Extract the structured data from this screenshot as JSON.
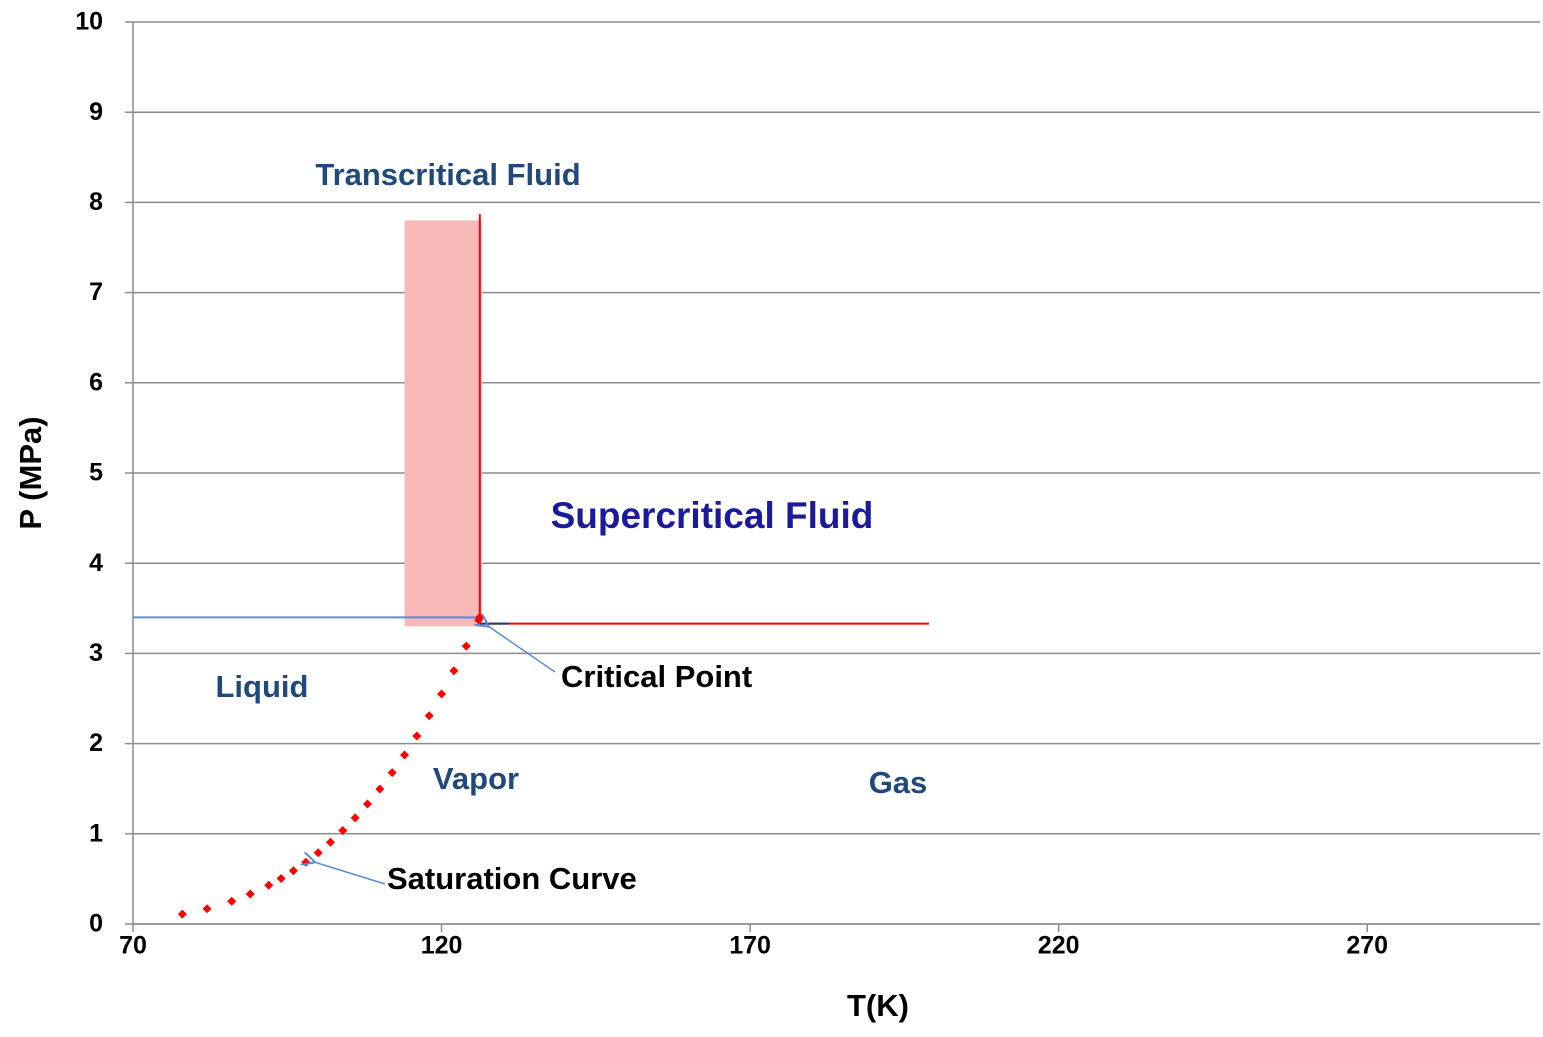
{
  "chart_data": {
    "type": "scatter",
    "xlabel": "T(K)",
    "ylabel": "P (MPa)",
    "xlim": [
      70,
      298
    ],
    "xticks": [
      70,
      120,
      170,
      220,
      270
    ],
    "ylim": [
      0,
      10
    ],
    "yticks": [
      0,
      1,
      2,
      3,
      4,
      5,
      6,
      7,
      8,
      9,
      10
    ],
    "grid": true,
    "series": [
      {
        "name": "Saturation Curve",
        "color": "#ff0000",
        "x": [
          78,
          82,
          86,
          89,
          92,
          94,
          96,
          98,
          100,
          102,
          104,
          106,
          108,
          110,
          112,
          114,
          116,
          118,
          120,
          122,
          124,
          126,
          126.2
        ],
        "values": [
          0.109,
          0.169,
          0.252,
          0.332,
          0.429,
          0.505,
          0.59,
          0.685,
          0.79,
          0.907,
          1.036,
          1.177,
          1.33,
          1.497,
          1.678,
          1.874,
          2.084,
          2.309,
          2.55,
          2.807,
          3.08,
          3.37,
          3.4
        ]
      }
    ],
    "shaded_region": {
      "color": "#f9b8b8",
      "xlim": [
        114,
        126.5
      ],
      "ylim": [
        3.3,
        7.8
      ]
    },
    "lines": [
      {
        "color": "#5b8bd6",
        "x": [
          70,
          126.2
        ],
        "y": [
          3.4,
          3.4
        ]
      },
      {
        "color": "#ff0000",
        "x": [
          126.2,
          199
        ],
        "y": [
          3.33,
          3.33
        ]
      },
      {
        "color": "#ff0000",
        "x": [
          126.2,
          126.2
        ],
        "y": [
          3.35,
          7.87
        ]
      },
      {
        "color": "#1f3f7a",
        "x": [
          126.2,
          131
        ],
        "y": [
          3.33,
          3.33
        ]
      }
    ],
    "annotations": [
      "Transcritical Fluid",
      "Supercritical Fluid",
      "Liquid",
      "Vapor",
      "Gas",
      "Critical Point",
      "Saturation Curve"
    ]
  }
}
